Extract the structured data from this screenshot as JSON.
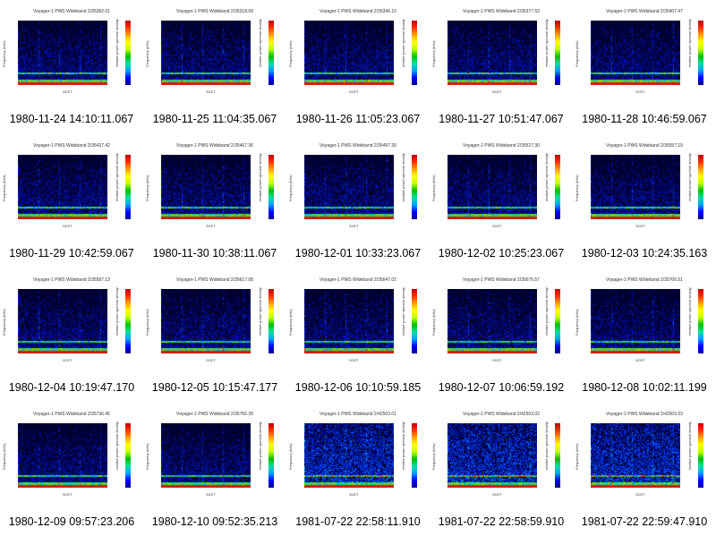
{
  "labels": {
    "yaxis": "Frequency (kHz)",
    "colorbar": "relative power spectral density",
    "time": "SCET"
  },
  "panels": [
    {
      "title": "Voyager-1 PWS Wideband 2/35282.01",
      "caption": "1980-11-24 14:10:11.067"
    },
    {
      "title": "Voyager-1 PWS Wideband 2/35318.09",
      "caption": "1980-11-25 11:04:35.067"
    },
    {
      "title": "Voyager-1 PWS Wideband 2/35346.10",
      "caption": "1980-11-26 11:05:23.067"
    },
    {
      "title": "Voyager-1 PWS Wideband 2/35377.53",
      "caption": "1980-11-27 10:51:47.067"
    },
    {
      "title": "Voyager-1 PWS Wideband 2/35407.47",
      "caption": "1980-11-28 10:46:59.067"
    },
    {
      "title": "Voyager-1 PWS Wideband 2/35437.42",
      "caption": "1980-11-29 10:42:59.067"
    },
    {
      "title": "Voyager-1 PWS Wideband 2/35467.36",
      "caption": "1980-11-30 10:38:11.067"
    },
    {
      "title": "Voyager-1 PWS Wideband 2/35497.30",
      "caption": "1980-12-01 10:33:23.067"
    },
    {
      "title": "Voyager-1 PWS Wideband 2/35527.30",
      "caption": "1980-12-02 10:25:23.067"
    },
    {
      "title": "Voyager-1 PWS Wideband 2/35557.19",
      "caption": "1980-12-03 10:24:35.163"
    },
    {
      "title": "Voyager-1 PWS Wideband 2/35587.13",
      "caption": "1980-12-04 10:19:47.170"
    },
    {
      "title": "Voyager-1 PWS Wideband 2/35617.08",
      "caption": "1980-12-05 10:15:47.177"
    },
    {
      "title": "Voyager-1 PWS Wideband 2/35647.02",
      "caption": "1980-12-06 10:10:59.185"
    },
    {
      "title": "Voyager-1 PWS Wideband 2/35676.57",
      "caption": "1980-12-07 10:06:59.192"
    },
    {
      "title": "Voyager-1 PWS Wideband 2/35706.51",
      "caption": "1980-12-08 10:02:11.199"
    },
    {
      "title": "Voyager-1 PWS Wideband 2/35736.45",
      "caption": "1980-12-09 09:57:23.206"
    },
    {
      "title": "Voyager-1 PWS Wideband 2/35766.39",
      "caption": "1980-12-10 09:52:35.213"
    },
    {
      "title": "Voyager-1 PWS Wideband 2/42503.01",
      "caption": "1981-07-22 22:58:11.910"
    },
    {
      "title": "Voyager-1 PWS Wideband 2/42503.02",
      "caption": "1981-07-22 22:58:59.910"
    },
    {
      "title": "Voyager-1 PWS Wideband 2/42503.03",
      "caption": "1981-07-22 22:59:47.910"
    }
  ]
}
